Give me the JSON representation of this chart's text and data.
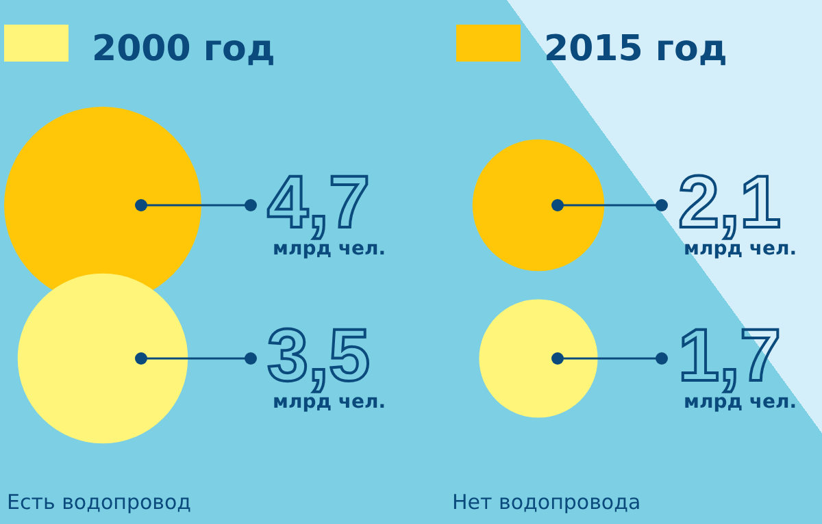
{
  "chart_data": {
    "type": "other",
    "categories": [
      "Есть водопровод",
      "Нет водопровода"
    ],
    "series": [
      {
        "name": "2015 год",
        "color": "#ffc708",
        "values": [
          4.7,
          2.1
        ],
        "value_labels": [
          "4,7",
          "2,1"
        ]
      },
      {
        "name": "2000 год",
        "color": "#fff57a",
        "values": [
          3.5,
          1.7
        ],
        "value_labels": [
          "3,5",
          "1,7"
        ]
      }
    ],
    "annotations": [
      "млрд чел.",
      "млрд чел.",
      "млрд чел.",
      "млрд чел."
    ],
    "legend": "top"
  }
}
